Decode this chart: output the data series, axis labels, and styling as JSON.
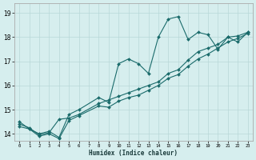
{
  "title": "",
  "xlabel": "Humidex (Indice chaleur)",
  "xlim": [
    -0.5,
    23.5
  ],
  "ylim": [
    13.7,
    19.4
  ],
  "xticks": [
    0,
    1,
    2,
    3,
    4,
    5,
    6,
    7,
    8,
    9,
    10,
    11,
    12,
    13,
    14,
    15,
    16,
    17,
    18,
    19,
    20,
    21,
    22,
    23
  ],
  "yticks": [
    14,
    15,
    16,
    17,
    18,
    19
  ],
  "bg_color": "#d6eeee",
  "line_color": "#1a6b6b",
  "grid_color": "#b8d8d8",
  "line1_x": [
    0,
    1,
    2,
    3,
    4,
    5,
    6,
    8,
    9,
    10,
    11,
    12,
    13,
    14,
    15,
    16,
    17,
    18,
    19,
    20,
    21,
    22,
    23
  ],
  "line1_y": [
    14.5,
    14.2,
    14.0,
    14.1,
    13.85,
    14.8,
    15.0,
    15.5,
    15.3,
    16.9,
    17.1,
    16.9,
    16.5,
    18.0,
    18.75,
    18.85,
    17.9,
    18.2,
    18.1,
    17.5,
    18.0,
    17.8,
    18.2
  ],
  "line2_x": [
    0,
    1,
    2,
    3,
    4,
    5,
    6,
    8,
    9,
    10,
    11,
    12,
    13,
    14,
    15,
    16,
    17,
    18,
    19,
    20,
    21,
    22,
    23
  ],
  "line2_y": [
    14.4,
    14.25,
    13.95,
    14.05,
    14.6,
    14.65,
    14.8,
    15.25,
    15.4,
    15.55,
    15.7,
    15.85,
    16.0,
    16.15,
    16.5,
    16.65,
    17.05,
    17.4,
    17.55,
    17.7,
    18.0,
    18.05,
    18.2
  ],
  "line3_x": [
    0,
    1,
    2,
    3,
    4,
    5,
    6,
    8,
    9,
    10,
    11,
    12,
    13,
    14,
    15,
    16,
    17,
    18,
    19,
    20,
    21,
    22,
    23
  ],
  "line3_y": [
    14.3,
    14.2,
    13.9,
    14.0,
    13.8,
    14.55,
    14.75,
    15.15,
    15.1,
    15.35,
    15.5,
    15.6,
    15.8,
    16.0,
    16.3,
    16.45,
    16.8,
    17.1,
    17.3,
    17.55,
    17.8,
    17.95,
    18.15
  ]
}
